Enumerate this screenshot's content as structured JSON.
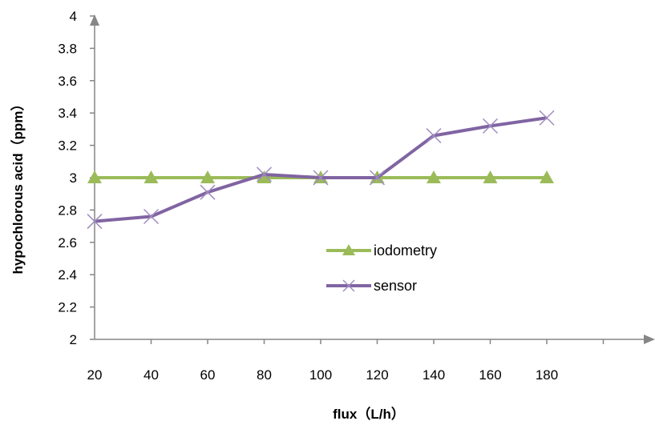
{
  "chart_data": {
    "type": "line",
    "categories": [
      "20",
      "40",
      "60",
      "80",
      "100",
      "120",
      "140",
      "160",
      "180"
    ],
    "x_ticks": [
      "20",
      "40",
      "60",
      "80",
      "100",
      "120",
      "140",
      "160",
      "180"
    ],
    "y_ticks": [
      "2",
      "2.2",
      "2.4",
      "2.6",
      "2.8",
      "3",
      "3.2",
      "3.4",
      "3.6",
      "3.8",
      "4"
    ],
    "ylim": [
      2,
      4
    ],
    "xlabel": "flux（L/h）",
    "ylabel": "hypochlorous acid（ppm）",
    "grid": false,
    "legend_position": "center-right",
    "series": [
      {
        "name": "iodometry",
        "color": "#9bbb59",
        "marker": "triangle",
        "values": [
          3,
          3,
          3,
          3,
          3,
          3,
          3,
          3,
          3
        ]
      },
      {
        "name": "sensor",
        "color": "#8064a2",
        "marker": "x",
        "values": [
          2.73,
          2.76,
          2.91,
          3.02,
          3.0,
          3.0,
          3.26,
          3.32,
          3.37
        ]
      }
    ]
  }
}
